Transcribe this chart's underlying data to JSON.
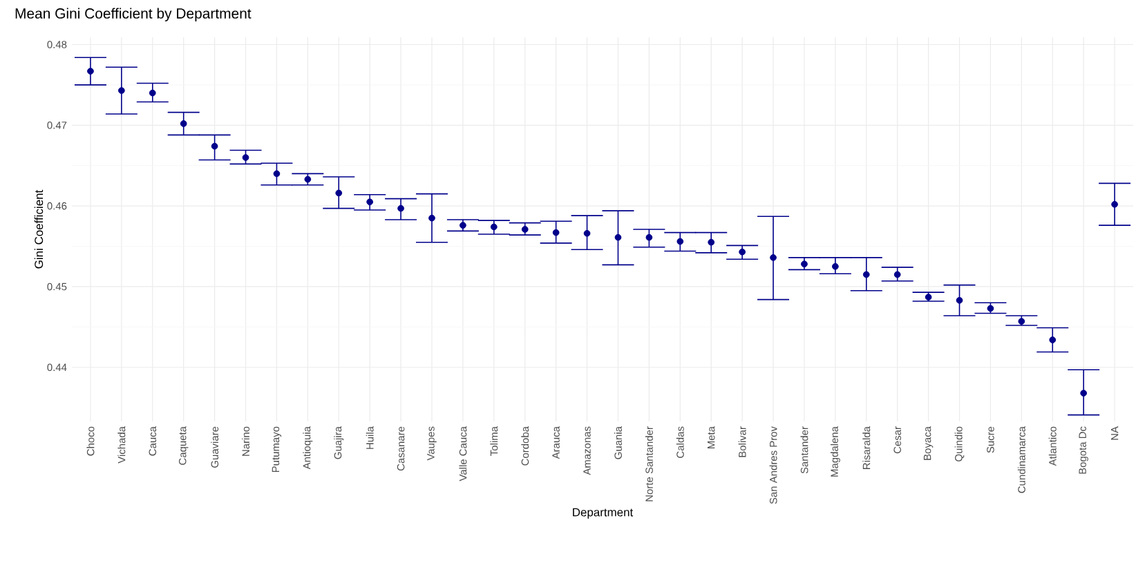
{
  "chart_data": {
    "type": "scatter",
    "title": "Mean Gini Coefficient by Department",
    "xlabel": "Department",
    "ylabel": "Gini Coefficient",
    "categories": [
      "Choco",
      "Vichada",
      "Cauca",
      "Caqueta",
      "Guaviare",
      "Narino",
      "Putumayo",
      "Antioquia",
      "Guajira",
      "Huila",
      "Casanare",
      "Vaupes",
      "Valle Cauca",
      "Tolima",
      "Cordoba",
      "Arauca",
      "Amazonas",
      "Guania",
      "Norte Santander",
      "Caldas",
      "Meta",
      "Bolivar",
      "San Andres Prov",
      "Santander",
      "Magdalena",
      "Risaralda",
      "Cesar",
      "Boyaca",
      "Quindio",
      "Sucre",
      "Cundinamarca",
      "Atlantico",
      "Bogota Dc",
      "NA"
    ],
    "values": [
      0.4767,
      0.4743,
      0.474,
      0.4702,
      0.4674,
      0.466,
      0.464,
      0.4633,
      0.4616,
      0.4605,
      0.4597,
      0.4585,
      0.4576,
      0.4574,
      0.4571,
      0.4567,
      0.4566,
      0.4561,
      0.4561,
      0.4556,
      0.4555,
      0.4543,
      0.4536,
      0.4528,
      0.4525,
      0.4515,
      0.4515,
      0.4487,
      0.4483,
      0.4473,
      0.4457,
      0.4434,
      0.4368,
      0.4602
    ],
    "errors": [
      [
        0.475,
        0.4784
      ],
      [
        0.4714,
        0.4772
      ],
      [
        0.4729,
        0.4752
      ],
      [
        0.4688,
        0.4716
      ],
      [
        0.4657,
        0.4688
      ],
      [
        0.4652,
        0.4669
      ],
      [
        0.4626,
        0.4653
      ],
      [
        0.4626,
        0.464
      ],
      [
        0.4597,
        0.4636
      ],
      [
        0.4595,
        0.4614
      ],
      [
        0.4583,
        0.4609
      ],
      [
        0.4555,
        0.4615
      ],
      [
        0.4569,
        0.4583
      ],
      [
        0.4565,
        0.4582
      ],
      [
        0.4564,
        0.4579
      ],
      [
        0.4554,
        0.4581
      ],
      [
        0.4546,
        0.4588
      ],
      [
        0.4527,
        0.4594
      ],
      [
        0.4549,
        0.4571
      ],
      [
        0.4544,
        0.4567
      ],
      [
        0.4542,
        0.4567
      ],
      [
        0.4534,
        0.4551
      ],
      [
        0.4484,
        0.4587
      ],
      [
        0.4521,
        0.4536
      ],
      [
        0.4516,
        0.4536
      ],
      [
        0.4495,
        0.4536
      ],
      [
        0.4507,
        0.4524
      ],
      [
        0.4482,
        0.4493
      ],
      [
        0.4464,
        0.4502
      ],
      [
        0.4467,
        0.448
      ],
      [
        0.4452,
        0.4464
      ],
      [
        0.4419,
        0.4449
      ],
      [
        0.4341,
        0.4397
      ],
      [
        0.4576,
        0.4628
      ]
    ],
    "color": "#00008b",
    "marker": "circle",
    "grid": true,
    "ylim": [
      0.4333,
      0.4809
    ],
    "yticks": [
      0.44,
      0.45,
      0.46,
      0.47,
      0.48
    ]
  }
}
